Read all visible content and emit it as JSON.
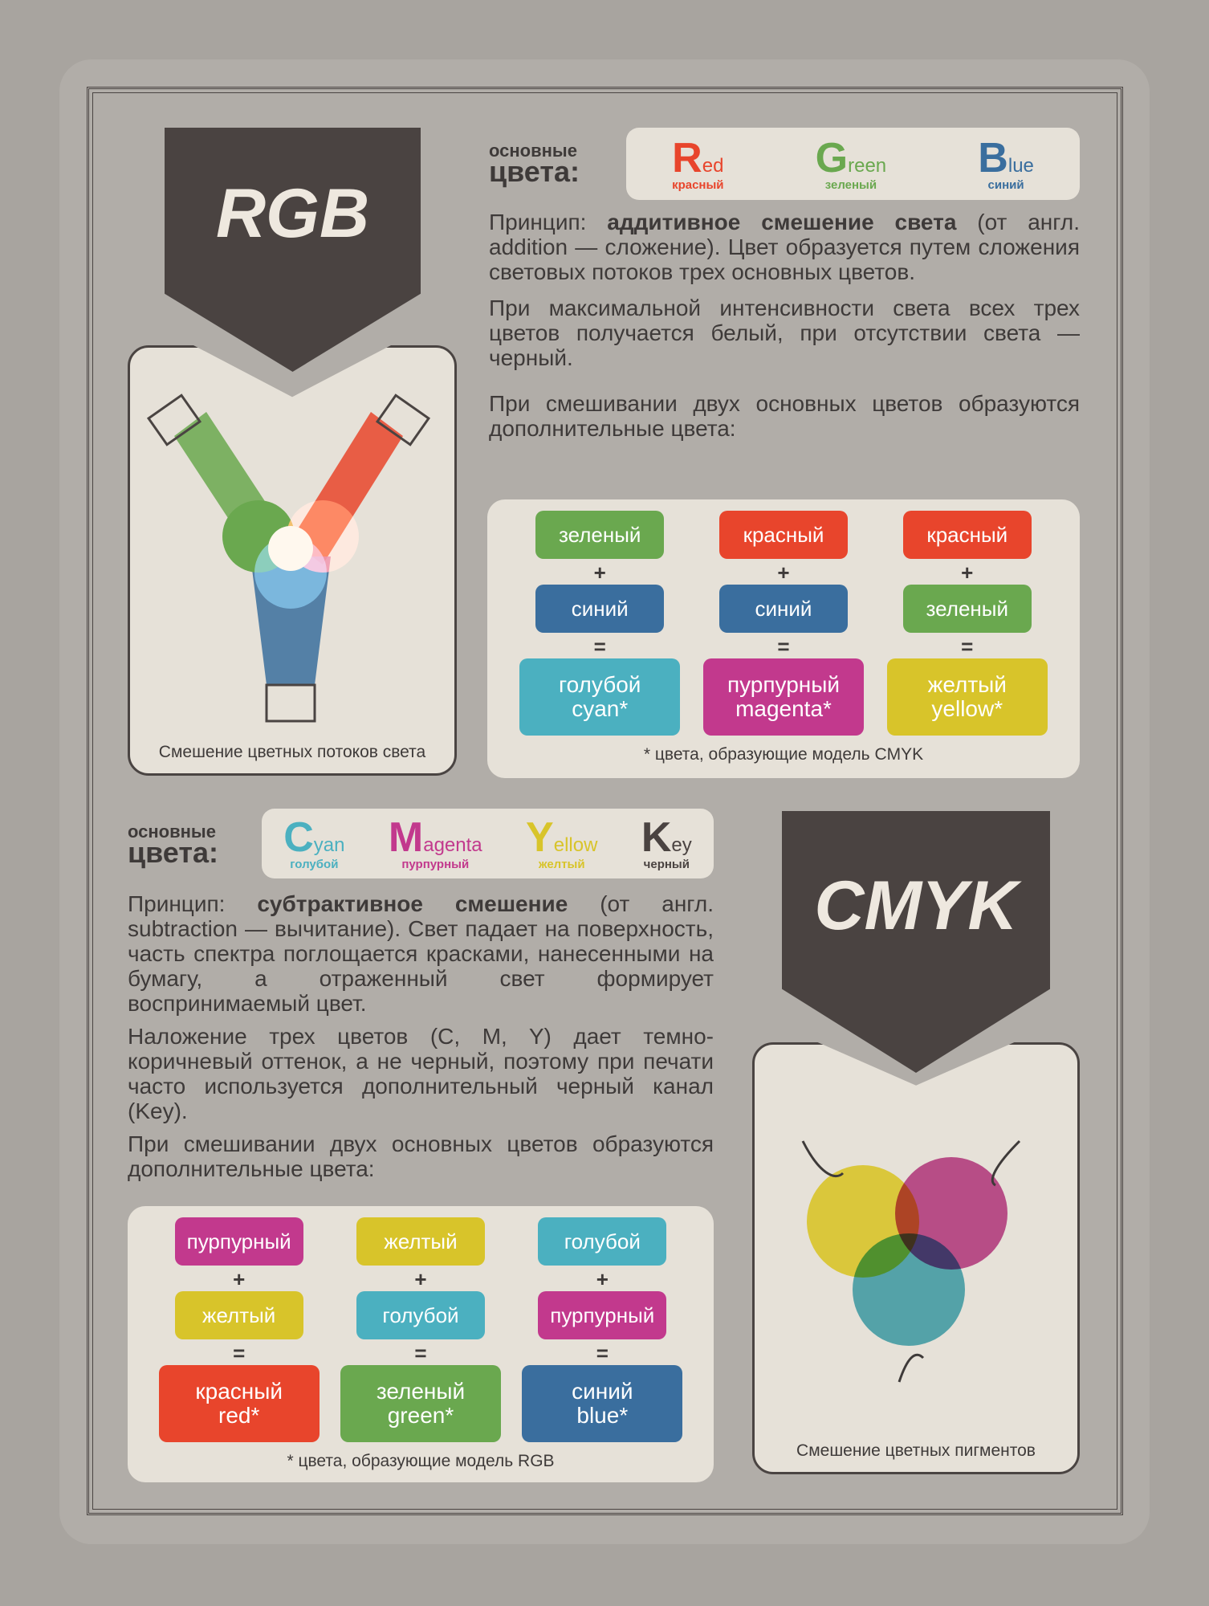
{
  "colors": {
    "red": "#e8452c",
    "green": "#6aa84f",
    "blue": "#3a6e9e",
    "cyan": "#4bb0c0",
    "magenta": "#c2398d",
    "yellow": "#d8c42a",
    "key": "#4a4341"
  },
  "rgb": {
    "title": "RGB",
    "illustration_caption": "Смешение цветных потоков света",
    "label_small": "основные",
    "label_big": "цвета:",
    "primaries": [
      {
        "word": "Red",
        "ru": "красный",
        "color": "red"
      },
      {
        "word": "Green",
        "ru": "зеленый",
        "color": "green"
      },
      {
        "word": "Blue",
        "ru": "синий",
        "color": "blue"
      }
    ],
    "principle_label": "Принцип:",
    "principle_bold": "аддитивное смешение света",
    "principle_rest": " (от англ. addition — сложение). Цвет образуется путем сложения световых потоков трех основных цветов.",
    "para2": "При максимальной интенсивности света всех трех цветов получается белый, при отсутствии света — черный.",
    "para3": "При смешивании двух основных цветов образуются дополнительные цвета:",
    "mixes": [
      {
        "a": "зеленый",
        "ac": "green",
        "b": "синий",
        "bc": "blue",
        "r1": "голубой",
        "r2": "cyan*",
        "rc": "cyan"
      },
      {
        "a": "красный",
        "ac": "red",
        "b": "синий",
        "bc": "blue",
        "r1": "пурпурный",
        "r2": "magenta*",
        "rc": "magenta"
      },
      {
        "a": "красный",
        "ac": "red",
        "b": "зеленый",
        "bc": "green",
        "r1": "желтый",
        "r2": "yellow*",
        "rc": "yellow"
      }
    ],
    "footnote": "* цвета, образующие модель CMYK"
  },
  "cmyk": {
    "title": "CMYK",
    "illustration_caption": "Смешение цветных пигментов",
    "label_small": "основные",
    "label_big": "цвета:",
    "primaries": [
      {
        "word": "Cyan",
        "ru": "голубой",
        "color": "cyan"
      },
      {
        "word": "Magenta",
        "ru": "пурпурный",
        "color": "magenta"
      },
      {
        "word": "Yellow",
        "ru": "желтый",
        "color": "yellow"
      },
      {
        "word": "Key",
        "ru": "черный",
        "color": "key"
      }
    ],
    "principle_label": "Принцип:",
    "principle_bold": "субтрактивное смешение",
    "principle_rest": " (от англ. subtraction — вычитание). Свет падает на поверхность, часть спектра поглощается красками, нанесенными на бумагу, а отраженный свет формирует воспринимаемый цвет.",
    "para2": "Наложение трех цветов (C, M, Y) дает темно-коричневый оттенок, а не черный, поэтому при печати часто используется дополнительный черный канал (Key).",
    "para3": "При смешивании двух основных цветов образуются дополнительные цвета:",
    "mixes": [
      {
        "a": "пурпурный",
        "ac": "magenta",
        "b": "желтый",
        "bc": "yellow",
        "r1": "красный",
        "r2": "red*",
        "rc": "red"
      },
      {
        "a": "желтый",
        "ac": "yellow",
        "b": "голубой",
        "bc": "cyan",
        "r1": "зеленый",
        "r2": "green*",
        "rc": "green"
      },
      {
        "a": "голубой",
        "ac": "cyan",
        "b": "пурпурный",
        "bc": "magenta",
        "r1": "синий",
        "r2": "blue*",
        "rc": "blue"
      }
    ],
    "footnote": "* цвета, образующие модель RGB"
  },
  "symbols": {
    "plus": "+",
    "equals": "="
  }
}
